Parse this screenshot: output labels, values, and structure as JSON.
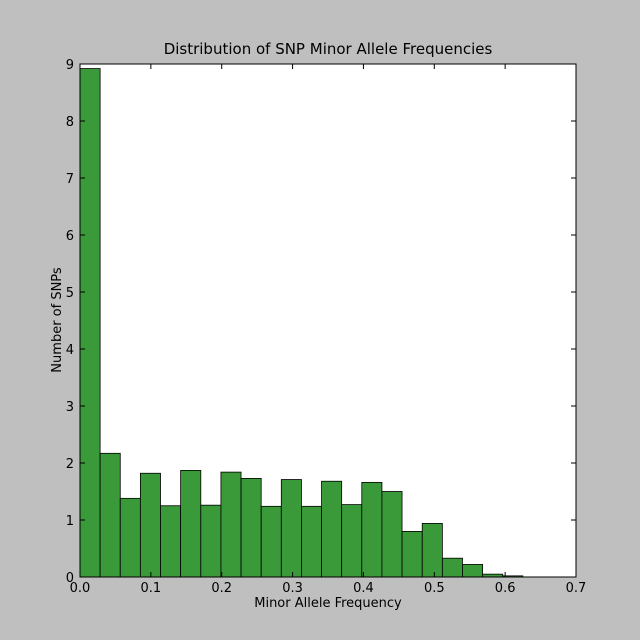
{
  "chart_data": {
    "type": "bar",
    "title": "Distribution of SNP Minor Allele Frequencies",
    "xlabel": "Minor Allele Frequency",
    "ylabel": "Number of SNPs",
    "xlim": [
      0.0,
      0.7
    ],
    "ylim": [
      0,
      9
    ],
    "xticks": [
      "0.0",
      "0.1",
      "0.2",
      "0.3",
      "0.4",
      "0.5",
      "0.6",
      "0.7"
    ],
    "yticks": [
      "0",
      "1",
      "2",
      "3",
      "4",
      "5",
      "6",
      "7",
      "8",
      "9"
    ],
    "grid": false,
    "bar_color": "#3a9a3a",
    "bins": [
      {
        "x0": 0.0,
        "x1": 0.0284,
        "value": 8.92
      },
      {
        "x0": 0.0284,
        "x1": 0.0568,
        "value": 2.17
      },
      {
        "x0": 0.0568,
        "x1": 0.0852,
        "value": 1.38
      },
      {
        "x0": 0.0852,
        "x1": 0.1136,
        "value": 1.82
      },
      {
        "x0": 0.1136,
        "x1": 0.142,
        "value": 1.25
      },
      {
        "x0": 0.142,
        "x1": 0.1705,
        "value": 1.87
      },
      {
        "x0": 0.1705,
        "x1": 0.1989,
        "value": 1.26
      },
      {
        "x0": 0.1989,
        "x1": 0.2273,
        "value": 1.84
      },
      {
        "x0": 0.2273,
        "x1": 0.2557,
        "value": 1.73
      },
      {
        "x0": 0.2557,
        "x1": 0.2841,
        "value": 1.24
      },
      {
        "x0": 0.2841,
        "x1": 0.3125,
        "value": 1.71
      },
      {
        "x0": 0.3125,
        "x1": 0.3409,
        "value": 1.24
      },
      {
        "x0": 0.3409,
        "x1": 0.3693,
        "value": 1.68
      },
      {
        "x0": 0.3693,
        "x1": 0.3977,
        "value": 1.27
      },
      {
        "x0": 0.3977,
        "x1": 0.4261,
        "value": 1.66
      },
      {
        "x0": 0.4261,
        "x1": 0.4545,
        "value": 1.5
      },
      {
        "x0": 0.4545,
        "x1": 0.483,
        "value": 0.8
      },
      {
        "x0": 0.483,
        "x1": 0.5114,
        "value": 0.94
      },
      {
        "x0": 0.5114,
        "x1": 0.5398,
        "value": 0.33
      },
      {
        "x0": 0.5398,
        "x1": 0.5682,
        "value": 0.22
      },
      {
        "x0": 0.5682,
        "x1": 0.5966,
        "value": 0.05
      },
      {
        "x0": 0.5966,
        "x1": 0.625,
        "value": 0.02
      }
    ]
  }
}
